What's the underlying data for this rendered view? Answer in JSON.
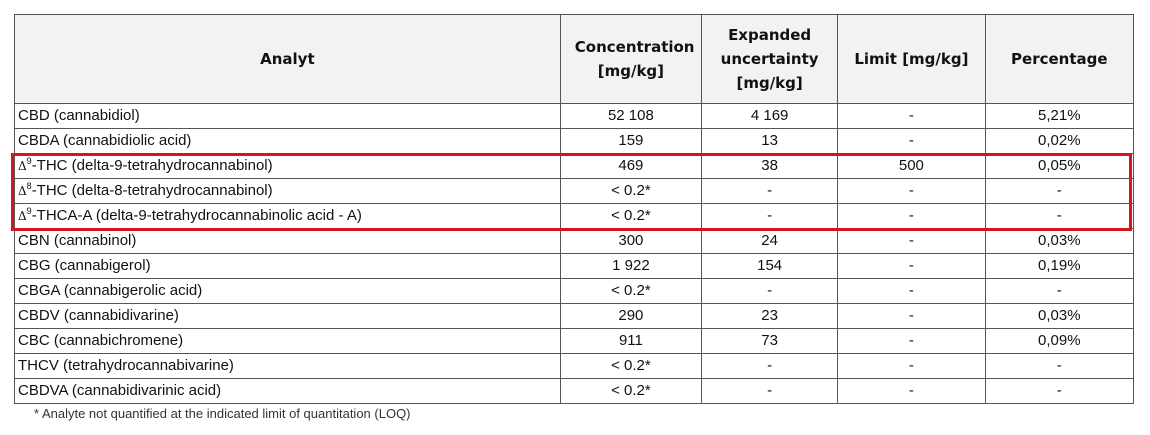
{
  "table": {
    "headers": [
      "Analyt",
      "Concentration [mg/kg]",
      "Expanded uncertainty [mg/kg]",
      "Limit [mg/kg]",
      "Percentage"
    ],
    "rows": [
      {
        "prefix": "",
        "sup": "",
        "name": "CBD (cannabidiol)",
        "concentration": "52 108",
        "uncertainty": "4 169",
        "limit": "-",
        "percentage": "5,21%"
      },
      {
        "prefix": "",
        "sup": "",
        "name": "CBDA (cannabidiolic acid)",
        "concentration": "159",
        "uncertainty": "13",
        "limit": "-",
        "percentage": "0,02%"
      },
      {
        "prefix": "Δ",
        "sup": "9",
        "name": "-THC (delta-9-tetrahydrocannabinol)",
        "concentration": "469",
        "uncertainty": "38",
        "limit": "500",
        "percentage": "0,05%"
      },
      {
        "prefix": "Δ",
        "sup": "8",
        "name": "-THC (delta-8-tetrahydrocannabinol)",
        "concentration": "< 0.2*",
        "uncertainty": "-",
        "limit": "-",
        "percentage": "-"
      },
      {
        "prefix": "Δ",
        "sup": "9",
        "name": "-THCA-A (delta-9-tetrahydrocannabinolic acid - A)",
        "concentration": "< 0.2*",
        "uncertainty": "-",
        "limit": "-",
        "percentage": "-"
      },
      {
        "prefix": "",
        "sup": "",
        "name": "CBN (cannabinol)",
        "concentration": "300",
        "uncertainty": "24",
        "limit": "-",
        "percentage": "0,03%"
      },
      {
        "prefix": "",
        "sup": "",
        "name": "CBG (cannabigerol)",
        "concentration": "1 922",
        "uncertainty": "154",
        "limit": "-",
        "percentage": "0,19%"
      },
      {
        "prefix": "",
        "sup": "",
        "name": "CBGA (cannabigerolic acid)",
        "concentration": "< 0.2*",
        "uncertainty": "-",
        "limit": "-",
        "percentage": "-"
      },
      {
        "prefix": "",
        "sup": "",
        "name": "CBDV (cannabidivarine)",
        "concentration": "290",
        "uncertainty": "23",
        "limit": "-",
        "percentage": "0,03%"
      },
      {
        "prefix": "",
        "sup": "",
        "name": "CBC (cannabichromene)",
        "concentration": "911",
        "uncertainty": "73",
        "limit": "-",
        "percentage": "0,09%"
      },
      {
        "prefix": "",
        "sup": "",
        "name": "THCV (tetrahydrocannabivarine)",
        "concentration": "< 0.2*",
        "uncertainty": "-",
        "limit": "-",
        "percentage": "-"
      },
      {
        "prefix": "",
        "sup": "",
        "name": "CBDVA (cannabidivarinic acid)",
        "concentration": "< 0.2*",
        "uncertainty": "-",
        "limit": "-",
        "percentage": "-"
      }
    ]
  },
  "highlight_color": "#d6161e",
  "footnote": "*  Analyte not quantified at the indicated limit of quantitation (LOQ)"
}
